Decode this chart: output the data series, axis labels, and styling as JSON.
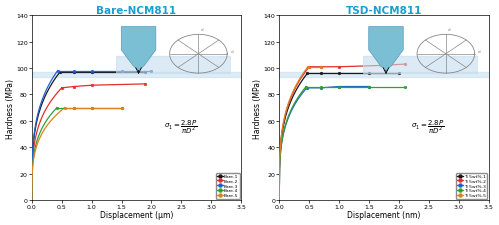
{
  "title1": "Bare-NCM811",
  "title2": "TSD-NCM811",
  "xlabel": "Displacement (μm)",
  "xlabel2": "Displacement (nm)",
  "ylabel": "Hardness (MPa)",
  "xlim": [
    0.0,
    3.5
  ],
  "ylim": [
    0,
    140
  ],
  "yticks": [
    0,
    20,
    40,
    60,
    80,
    100,
    120,
    140
  ],
  "xticks": [
    0.0,
    0.5,
    1.0,
    1.5,
    2.0,
    2.5,
    3.0,
    3.5
  ],
  "title_color": "#1a9fce",
  "hardness_band_color": "#c5ddef",
  "bare_curves": {
    "colors": [
      "#1a1a1a",
      "#e03030",
      "#2060d0",
      "#30a030",
      "#e08020"
    ],
    "labels": [
      "Bare-1",
      "Bare-2",
      "Bare-3",
      "Bare-4",
      "Bare-5"
    ],
    "rise_ends": [
      0.47,
      0.5,
      0.43,
      0.42,
      0.55
    ],
    "flat_y": [
      97,
      85,
      98,
      70,
      70
    ],
    "flat_segments": [
      [
        [
          0.47,
          0.7,
          1.0,
          1.9
        ],
        [
          97,
          97,
          97,
          97
        ]
      ],
      [
        [
          0.5,
          0.7,
          1.0,
          1.9
        ],
        [
          85,
          86,
          87,
          88
        ]
      ],
      [
        [
          0.43,
          0.7,
          1.0,
          1.5,
          2.0
        ],
        [
          98,
          98,
          98,
          98,
          98
        ]
      ],
      [
        [
          0.42,
          0.7,
          1.0,
          1.5
        ],
        [
          70,
          70,
          70,
          70
        ]
      ],
      [
        [
          0.55,
          0.7,
          1.0,
          1.5
        ],
        [
          70,
          70,
          70,
          70
        ]
      ]
    ]
  },
  "tsd_curves": {
    "colors": [
      "#1a1a1a",
      "#e03030",
      "#2060d0",
      "#30a030",
      "#e08020"
    ],
    "labels": [
      "Ti 5wt%-1",
      "Ti 5wt%-2",
      "Ti 5wt%-3",
      "Ti 5wt%-4",
      "Ti 5wt%-5"
    ],
    "rise_ends": [
      0.47,
      0.5,
      0.46,
      0.45,
      0.48
    ],
    "flat_y": [
      96,
      101,
      85,
      86,
      101
    ],
    "flat_segments": [
      [
        [
          0.47,
          0.7,
          1.0,
          1.5,
          2.0
        ],
        [
          96,
          96,
          96,
          96,
          96
        ]
      ],
      [
        [
          0.5,
          0.7,
          1.0,
          1.7,
          2.1
        ],
        [
          101,
          101,
          101,
          102,
          103
        ]
      ],
      [
        [
          0.46,
          0.7,
          1.0,
          1.5
        ],
        [
          85,
          85,
          86,
          86
        ]
      ],
      [
        [
          0.45,
          0.7,
          1.0,
          1.5,
          2.1
        ],
        [
          86,
          86,
          86,
          86,
          86
        ]
      ],
      [
        [
          0.48,
          0.7
        ],
        [
          101,
          101
        ]
      ]
    ]
  }
}
